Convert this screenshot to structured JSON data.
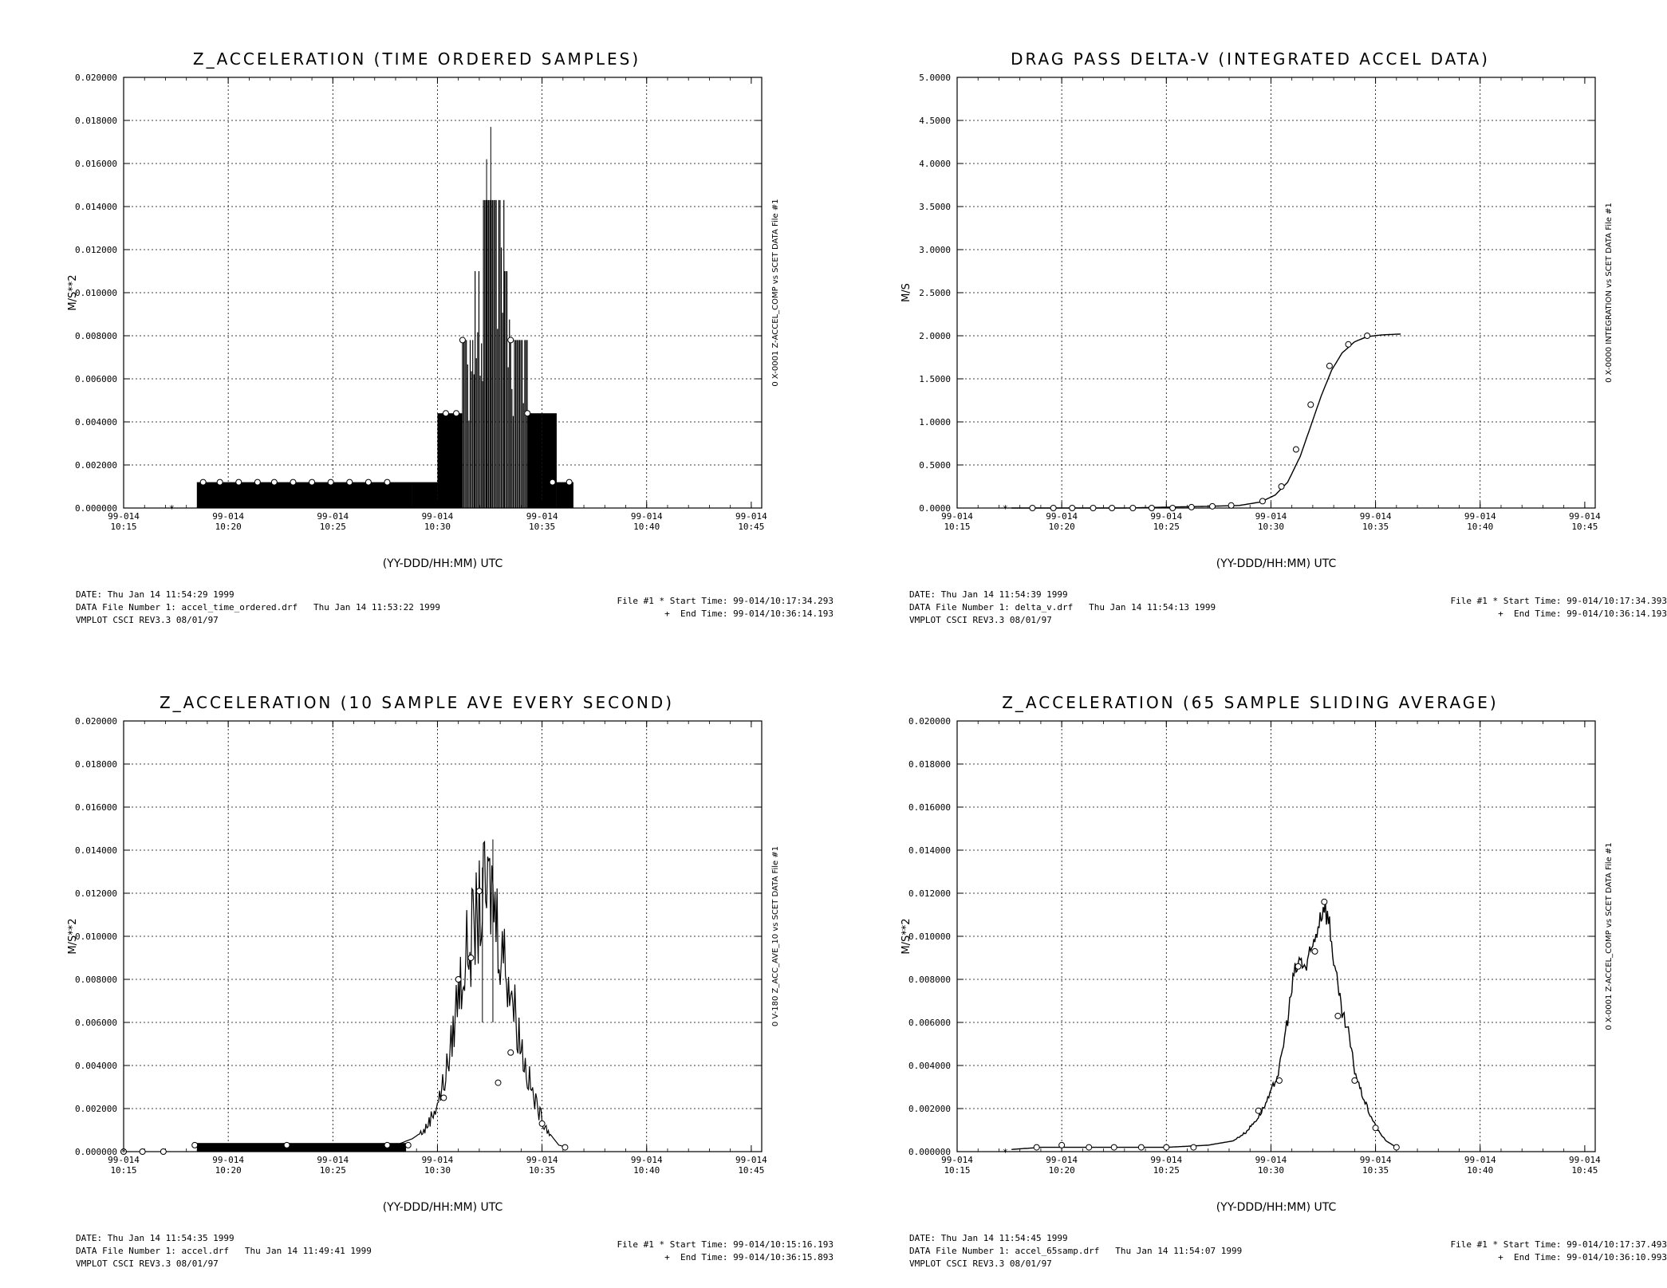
{
  "chart_data": [
    {
      "type": "line",
      "title": "Z_ACCELERATION (TIME ORDERED SAMPLES)",
      "ylabel": "M/S**2",
      "xlabel": "(YY-DDD/HH:MM) UTC",
      "right_label": "0   X-0001 Z-ACCEL_COMP vs SCET  DATA File #1",
      "ylim": [
        0.0,
        0.02
      ],
      "yticks": [
        "0.000000",
        "0.002000",
        "0.004000",
        "0.006000",
        "0.008000",
        "0.010000",
        "0.012000",
        "0.014000",
        "0.016000",
        "0.018000",
        "0.020000"
      ],
      "xlim_min": [
        15,
        45.5
      ],
      "xticks": [
        {
          "t": 15,
          "date": "99-014",
          "time": "10:15"
        },
        {
          "t": 20,
          "date": "99-014",
          "time": "10:20"
        },
        {
          "t": 25,
          "date": "99-014",
          "time": "10:25"
        },
        {
          "t": 30,
          "date": "99-014",
          "time": "10:30"
        },
        {
          "t": 35,
          "date": "99-014",
          "time": "10:35"
        },
        {
          "t": 40,
          "date": "99-014",
          "time": "10:40"
        },
        {
          "t": 45,
          "date": "99-014",
          "time": "10:45"
        }
      ],
      "style": "blocks",
      "series": [
        {
          "blocks": [
            [
              18.5,
              28.8,
              0.0012
            ],
            [
              28.8,
              30.0,
              0.0012
            ],
            [
              30.0,
              31.2,
              0.0044
            ],
            [
              31.2,
              31.8,
              0.0078
            ],
            [
              31.8,
              32.2,
              0.011
            ],
            [
              32.2,
              33.2,
              0.0143
            ],
            [
              33.2,
              33.5,
              0.011
            ],
            [
              33.5,
              34.3,
              0.0078
            ],
            [
              34.3,
              35.0,
              0.0044
            ],
            [
              35.0,
              35.7,
              0.0044
            ],
            [
              35.7,
              36.5,
              0.0012
            ]
          ],
          "peak": [
            [
              32.55,
              0.0177
            ],
            [
              32.35,
              0.0162
            ]
          ],
          "markers": [
            [
              18.8,
              0.0012
            ],
            [
              19.6,
              0.0012
            ],
            [
              20.5,
              0.0012
            ],
            [
              21.4,
              0.0012
            ],
            [
              22.2,
              0.0012
            ],
            [
              23.1,
              0.0012
            ],
            [
              24.0,
              0.0012
            ],
            [
              24.9,
              0.0012
            ],
            [
              25.8,
              0.0012
            ],
            [
              26.7,
              0.0012
            ],
            [
              27.6,
              0.0012
            ],
            [
              30.4,
              0.0044
            ],
            [
              30.9,
              0.0044
            ],
            [
              31.2,
              0.0078
            ],
            [
              33.5,
              0.0078
            ],
            [
              34.3,
              0.0044
            ],
            [
              35.5,
              0.0012
            ],
            [
              36.3,
              0.0012
            ]
          ],
          "star": [
            17.3,
            0.0
          ]
        }
      ],
      "footer": {
        "date": "DATE: Thu Jan 14 11:54:29 1999",
        "file": "DATA File Number 1: accel_time_ordered.drf   Thu Jan 14 11:53:22 1999",
        "version": "VMPLOT CSCI REV3.3 08/01/97",
        "start": "File #1 * Start Time: 99-014/10:17:34.293",
        "end": "+  End Time: 99-014/10:36:14.193"
      }
    },
    {
      "type": "line",
      "title": "DRAG PASS DELTA-V (INTEGRATED ACCEL DATA)",
      "ylabel": "M/S",
      "xlabel": "(YY-DDD/HH:MM) UTC",
      "right_label": "0   X-0000 INTEGRATION vs SCET  DATA File #1",
      "ylim": [
        0.0,
        5.0
      ],
      "yticks": [
        "0.0000",
        "0.5000",
        "1.0000",
        "1.5000",
        "2.0000",
        "2.5000",
        "3.0000",
        "3.5000",
        "4.0000",
        "4.5000",
        "5.0000"
      ],
      "xlim_min": [
        15,
        45.5
      ],
      "xticks": [
        {
          "t": 15,
          "date": "99-014",
          "time": "10:15"
        },
        {
          "t": 20,
          "date": "99-014",
          "time": "10:20"
        },
        {
          "t": 25,
          "date": "99-014",
          "time": "10:25"
        },
        {
          "t": 30,
          "date": "99-014",
          "time": "10:30"
        },
        {
          "t": 35,
          "date": "99-014",
          "time": "10:35"
        },
        {
          "t": 40,
          "date": "99-014",
          "time": "10:40"
        },
        {
          "t": 45,
          "date": "99-014",
          "time": "10:45"
        }
      ],
      "style": "line",
      "series": [
        {
          "points": [
            [
              17.6,
              0.0
            ],
            [
              19,
              0.0
            ],
            [
              21,
              0.0
            ],
            [
              23,
              0.0
            ],
            [
              25,
              0.01
            ],
            [
              27,
              0.02
            ],
            [
              28.5,
              0.03
            ],
            [
              29.5,
              0.07
            ],
            [
              30.2,
              0.15
            ],
            [
              30.8,
              0.3
            ],
            [
              31.4,
              0.6
            ],
            [
              31.9,
              0.95
            ],
            [
              32.4,
              1.3
            ],
            [
              32.9,
              1.6
            ],
            [
              33.4,
              1.8
            ],
            [
              34.0,
              1.93
            ],
            [
              34.6,
              1.99
            ],
            [
              35.3,
              2.01
            ],
            [
              36.2,
              2.02
            ]
          ],
          "markers": [
            [
              18.6,
              0.0
            ],
            [
              19.6,
              0.0
            ],
            [
              20.5,
              0.0
            ],
            [
              21.5,
              0.0
            ],
            [
              22.4,
              0.0
            ],
            [
              23.4,
              0.0
            ],
            [
              24.3,
              0.0
            ],
            [
              25.3,
              0.0
            ],
            [
              26.2,
              0.01
            ],
            [
              27.2,
              0.02
            ],
            [
              28.1,
              0.03
            ],
            [
              29.6,
              0.08
            ],
            [
              30.5,
              0.25
            ],
            [
              31.2,
              0.68
            ],
            [
              31.9,
              1.2
            ],
            [
              32.8,
              1.65
            ],
            [
              33.7,
              1.9
            ],
            [
              34.6,
              2.0
            ]
          ],
          "star": [
            17.3,
            0.0
          ]
        }
      ],
      "footer": {
        "date": "DATE: Thu Jan 14 11:54:39 1999",
        "file": "DATA File Number 1: delta_v.drf   Thu Jan 14 11:54:13 1999",
        "version": "VMPLOT CSCI REV3.3 08/01/97",
        "start": "File #1 * Start Time: 99-014/10:17:34.393",
        "end": "+  End Time: 99-014/10:36:14.193"
      }
    },
    {
      "type": "line",
      "title": "Z_ACCELERATION (10 SAMPLE AVE EVERY SECOND)",
      "ylabel": "M/S**2",
      "xlabel": "(YY-DDD/HH:MM) UTC",
      "right_label": "0   V-180 Z_ACC_AVE_10 vs SCET  DATA File #1",
      "ylim": [
        0.0,
        0.02
      ],
      "yticks": [
        "0.000000",
        "0.002000",
        "0.004000",
        "0.006000",
        "0.008000",
        "0.010000",
        "0.012000",
        "0.014000",
        "0.016000",
        "0.018000",
        "0.020000"
      ],
      "xlim_min": [
        15,
        45.5
      ],
      "xticks": [
        {
          "t": 15,
          "date": "99-014",
          "time": "10:15"
        },
        {
          "t": 20,
          "date": "99-014",
          "time": "10:20"
        },
        {
          "t": 25,
          "date": "99-014",
          "time": "10:25"
        },
        {
          "t": 30,
          "date": "99-014",
          "time": "10:30"
        },
        {
          "t": 35,
          "date": "99-014",
          "time": "10:35"
        },
        {
          "t": 40,
          "date": "99-014",
          "time": "10:40"
        },
        {
          "t": 45,
          "date": "99-014",
          "time": "10:45"
        }
      ],
      "style": "noisy",
      "series": [
        {
          "points": [
            [
              18.5,
              0.0003
            ],
            [
              20,
              0.0003
            ],
            [
              22,
              0.0003
            ],
            [
              24,
              0.0003
            ],
            [
              26,
              0.0003
            ],
            [
              28,
              0.0003
            ],
            [
              28.8,
              0.0006
            ],
            [
              29.4,
              0.001
            ],
            [
              29.8,
              0.0018
            ],
            [
              30.2,
              0.0028
            ],
            [
              30.6,
              0.0045
            ],
            [
              31.0,
              0.0075
            ],
            [
              31.4,
              0.0092
            ],
            [
              31.8,
              0.0105
            ],
            [
              32.2,
              0.0118
            ],
            [
              32.6,
              0.0122
            ],
            [
              33.0,
              0.0098
            ],
            [
              33.4,
              0.0082
            ],
            [
              33.8,
              0.006
            ],
            [
              34.2,
              0.004
            ],
            [
              34.6,
              0.0025
            ],
            [
              35.0,
              0.0015
            ],
            [
              35.4,
              0.0008
            ],
            [
              35.8,
              0.0003
            ],
            [
              36.2,
              0.0002
            ]
          ],
          "peak": [
            [
              32.65,
              0.0145
            ],
            [
              32.15,
              0.0132
            ]
          ],
          "markers": [
            [
              15.0,
              0.0
            ],
            [
              15.9,
              0.0
            ],
            [
              16.9,
              0.0
            ],
            [
              18.4,
              0.0003
            ],
            [
              22.8,
              0.0003
            ],
            [
              27.6,
              0.0003
            ],
            [
              28.6,
              0.0003
            ],
            [
              30.3,
              0.0025
            ],
            [
              31.0,
              0.008
            ],
            [
              31.6,
              0.009
            ],
            [
              32.0,
              0.0121
            ],
            [
              32.9,
              0.0032
            ],
            [
              33.5,
              0.0046
            ],
            [
              35.0,
              0.0013
            ],
            [
              36.1,
              0.0002
            ]
          ],
          "star": [
            15.0,
            0.0
          ]
        }
      ],
      "footer": {
        "date": "DATE: Thu Jan 14 11:54:35 1999",
        "file": "DATA File Number 1: accel.drf   Thu Jan 14 11:49:41 1999",
        "version": "VMPLOT CSCI REV3.3 08/01/97",
        "start": "File #1 * Start Time: 99-014/10:15:16.193",
        "end": "+  End Time: 99-014/10:36:15.893"
      }
    },
    {
      "type": "line",
      "title": "Z_ACCELERATION (65 SAMPLE SLIDING AVERAGE)",
      "ylabel": "M/S**2",
      "xlabel": "(YY-DDD/HH:MM) UTC",
      "right_label": "0   X-0001 Z-ACCEL_COMP vs SCET  DATA File #1",
      "ylim": [
        0.0,
        0.02
      ],
      "yticks": [
        "0.000000",
        "0.002000",
        "0.004000",
        "0.006000",
        "0.008000",
        "0.010000",
        "0.012000",
        "0.014000",
        "0.016000",
        "0.018000",
        "0.020000"
      ],
      "xlim_min": [
        15,
        45.5
      ],
      "xticks": [
        {
          "t": 15,
          "date": "99-014",
          "time": "10:15"
        },
        {
          "t": 20,
          "date": "99-014",
          "time": "10:20"
        },
        {
          "t": 25,
          "date": "99-014",
          "time": "10:25"
        },
        {
          "t": 30,
          "date": "99-014",
          "time": "10:30"
        },
        {
          "t": 35,
          "date": "99-014",
          "time": "10:35"
        },
        {
          "t": 40,
          "date": "99-014",
          "time": "10:40"
        },
        {
          "t": 45,
          "date": "99-014",
          "time": "10:45"
        }
      ],
      "style": "smooth-noisy",
      "series": [
        {
          "points": [
            [
              17.6,
              0.0001
            ],
            [
              19,
              0.0002
            ],
            [
              21,
              0.0002
            ],
            [
              23,
              0.0002
            ],
            [
              25,
              0.0002
            ],
            [
              27,
              0.0003
            ],
            [
              28.2,
              0.0005
            ],
            [
              28.8,
              0.0009
            ],
            [
              29.4,
              0.0016
            ],
            [
              29.9,
              0.0025
            ],
            [
              30.4,
              0.0038
            ],
            [
              30.8,
              0.0062
            ],
            [
              31.1,
              0.0082
            ],
            [
              31.4,
              0.0089
            ],
            [
              31.7,
              0.0085
            ],
            [
              32.0,
              0.0095
            ],
            [
              32.3,
              0.0108
            ],
            [
              32.55,
              0.0116
            ],
            [
              32.8,
              0.0105
            ],
            [
              33.0,
              0.009
            ],
            [
              33.2,
              0.0075
            ],
            [
              33.4,
              0.0064
            ],
            [
              33.7,
              0.0055
            ],
            [
              34.0,
              0.0038
            ],
            [
              34.3,
              0.0028
            ],
            [
              34.7,
              0.0018
            ],
            [
              35.1,
              0.001
            ],
            [
              35.5,
              0.0005
            ],
            [
              36.0,
              0.0002
            ]
          ],
          "markers": [
            [
              18.8,
              0.0002
            ],
            [
              20.0,
              0.0003
            ],
            [
              21.3,
              0.0002
            ],
            [
              22.5,
              0.0002
            ],
            [
              23.8,
              0.0002
            ],
            [
              25.0,
              0.0002
            ],
            [
              26.3,
              0.0002
            ],
            [
              29.4,
              0.0019
            ],
            [
              30.4,
              0.0033
            ],
            [
              31.3,
              0.0086
            ],
            [
              32.1,
              0.0093
            ],
            [
              32.55,
              0.0116
            ],
            [
              33.2,
              0.0063
            ],
            [
              34.0,
              0.0033
            ],
            [
              35.0,
              0.0011
            ],
            [
              36.0,
              0.0002
            ]
          ],
          "star": [
            17.3,
            0.0
          ]
        }
      ],
      "footer": {
        "date": "DATE: Thu Jan 14 11:54:45 1999",
        "file": "DATA File Number 1: accel_65samp.drf   Thu Jan 14 11:54:07 1999",
        "version": "VMPLOT CSCI REV3.3 08/01/97",
        "start": "File #1 * Start Time: 99-014/10:17:37.493",
        "end": "+  End Time: 99-014/10:36:10.993"
      }
    }
  ]
}
